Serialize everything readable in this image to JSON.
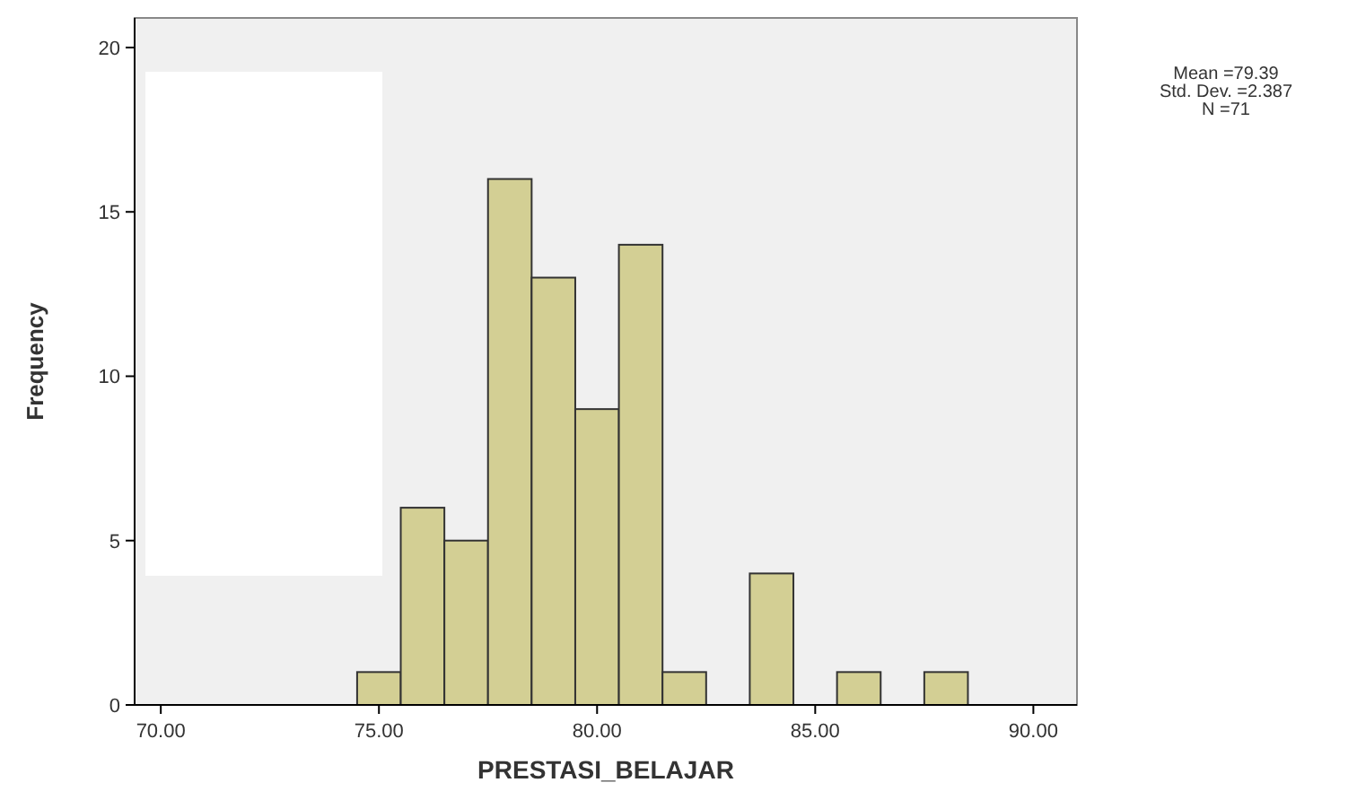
{
  "chart_data": {
    "type": "histogram",
    "xlabel": "PRESTASI_BELAJAR",
    "ylabel": "Frequency",
    "bins": [
      74.5,
      75.5,
      76.5,
      77.5,
      78.5,
      79.5,
      80.5,
      81.5,
      82.5,
      83.5,
      84.5,
      85.5,
      86.5,
      87.5,
      88.5
    ],
    "values": [
      1,
      6,
      5,
      16,
      13,
      9,
      14,
      1,
      0,
      4,
      0,
      1,
      0,
      1
    ],
    "color": "#d3cf94",
    "xlim": [
      69.4,
      91
    ],
    "xticks": [
      {
        "value": 70,
        "label": "70.00"
      },
      {
        "value": 75,
        "label": "75.00"
      },
      {
        "value": 80,
        "label": "80.00"
      },
      {
        "value": 85,
        "label": "85.00"
      },
      {
        "value": 90,
        "label": "90.00"
      }
    ],
    "ylim": [
      0,
      20.9
    ],
    "yticks": [
      0,
      5,
      10,
      15,
      20
    ],
    "annotations": [
      "Mean =79.39",
      "Std. Dev. =2.387",
      "N =71"
    ]
  }
}
